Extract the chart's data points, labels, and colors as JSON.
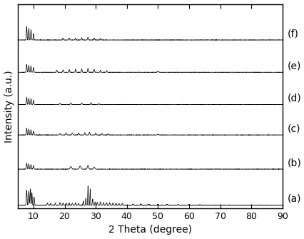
{
  "xlabel": "2 Theta (degree)",
  "ylabel": "Intensity (a.u.)",
  "x_min": 5,
  "x_max": 90,
  "labels": [
    "(a)",
    "(b)",
    "(c)",
    "(d)",
    "(e)",
    "(f)"
  ],
  "x_ticks": [
    10,
    20,
    30,
    40,
    50,
    60,
    70,
    80,
    90
  ],
  "line_color": "#000000",
  "label_fontsize": 10,
  "tick_fontsize": 9,
  "offsets": [
    0,
    0.95,
    1.85,
    2.65,
    3.5,
    4.35
  ],
  "scale": 0.75
}
